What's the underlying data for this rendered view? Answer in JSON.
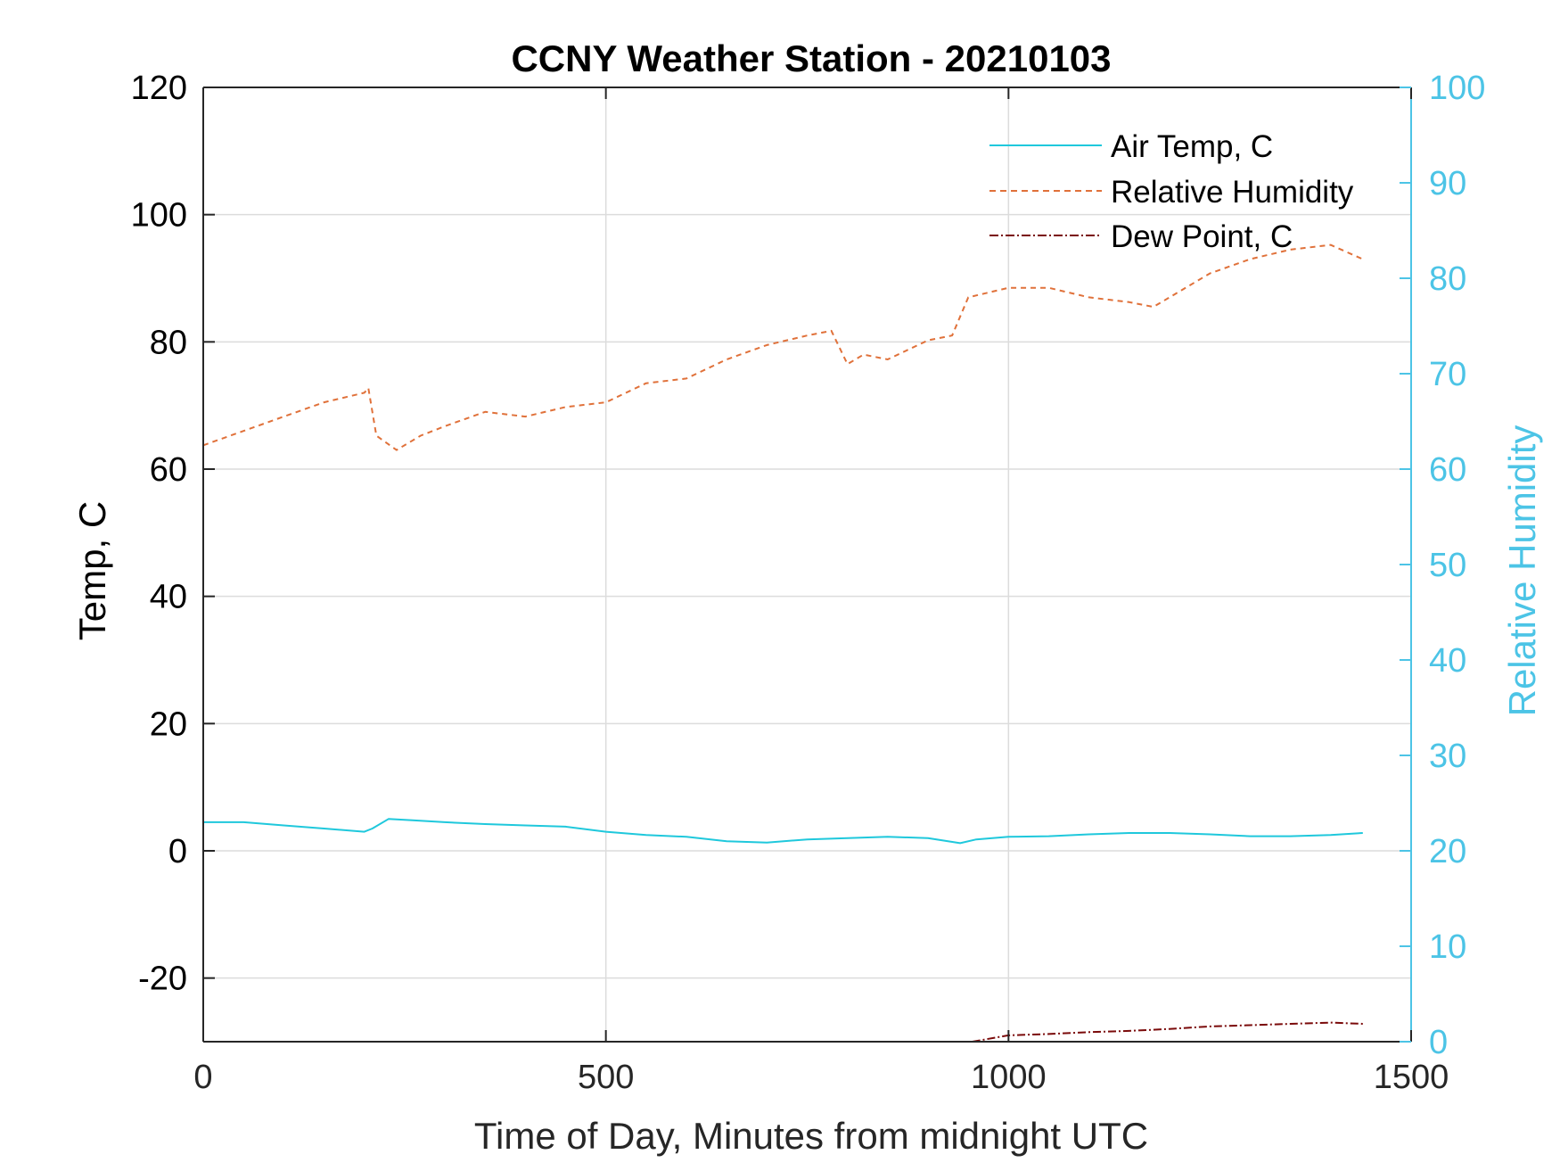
{
  "chart_data": {
    "type": "line",
    "title": "CCNY Weather Station - 20210103",
    "xlabel": "Time of Day, Minutes from midnight UTC",
    "ylabel_left": "Temp, C",
    "ylabel_right": "Relative Humidity",
    "xlim": [
      0,
      1500
    ],
    "ylim_left": [
      -30,
      120
    ],
    "ylim_right": [
      0,
      100
    ],
    "x_ticks": [
      "0",
      "500",
      "1000",
      "1500"
    ],
    "y_left_ticks": [
      "-20",
      "0",
      "20",
      "40",
      "60",
      "80",
      "100",
      "120"
    ],
    "y_right_ticks": [
      "0",
      "10",
      "20",
      "30",
      "40",
      "50",
      "60",
      "70",
      "80",
      "90",
      "100"
    ],
    "grid": true,
    "legend_position": "top-right",
    "colors": {
      "air_temp": "#1fc8dc",
      "humidity": "#e0713a",
      "dew_point": "#7a0a0a",
      "right_axis": "#4cc4e6",
      "axis": "#262626",
      "grid": "#dcdcdc"
    },
    "series": [
      {
        "name": "Air Temp, C",
        "axis": "left",
        "style": "solid",
        "x": [
          0,
          50,
          100,
          150,
          200,
          210,
          230,
          260,
          300,
          350,
          400,
          450,
          500,
          550,
          600,
          650,
          700,
          750,
          800,
          850,
          900,
          940,
          960,
          1000,
          1050,
          1100,
          1150,
          1200,
          1250,
          1300,
          1350,
          1400,
          1440
        ],
        "values": [
          4.5,
          4.5,
          4.0,
          3.5,
          3.0,
          3.5,
          5.0,
          4.8,
          4.5,
          4.2,
          4.0,
          3.8,
          3.0,
          2.5,
          2.2,
          1.5,
          1.3,
          1.8,
          2.0,
          2.2,
          2.0,
          1.2,
          1.8,
          2.2,
          2.3,
          2.6,
          2.8,
          2.8,
          2.6,
          2.3,
          2.3,
          2.5,
          2.8
        ]
      },
      {
        "name": "Relative Humidity",
        "axis": "right",
        "style": "dashed",
        "x": [
          0,
          50,
          100,
          150,
          200,
          205,
          215,
          240,
          270,
          300,
          350,
          400,
          450,
          500,
          550,
          600,
          650,
          700,
          750,
          780,
          800,
          820,
          850,
          900,
          930,
          950,
          1000,
          1050,
          1100,
          1150,
          1180,
          1200,
          1250,
          1300,
          1350,
          1400,
          1440
        ],
        "values": [
          62.5,
          64,
          65.5,
          67,
          68,
          68.5,
          63.5,
          62,
          63.5,
          64.5,
          66,
          65.5,
          66.5,
          67,
          69,
          69.5,
          71.5,
          73,
          74,
          74.5,
          71,
          72,
          71.5,
          73.5,
          74,
          78,
          79,
          79,
          78,
          77.5,
          77,
          78,
          80.5,
          82,
          83,
          83.5,
          82
        ]
      },
      {
        "name": "Dew Point, C",
        "axis": "left",
        "style": "dashdot",
        "x": [
          955,
          1000,
          1050,
          1100,
          1150,
          1200,
          1250,
          1300,
          1350,
          1400,
          1440
        ],
        "values": [
          -30,
          -29,
          -28.8,
          -28.5,
          -28.3,
          -28,
          -27.6,
          -27.4,
          -27.2,
          -27.0,
          -27.2
        ]
      }
    ]
  }
}
